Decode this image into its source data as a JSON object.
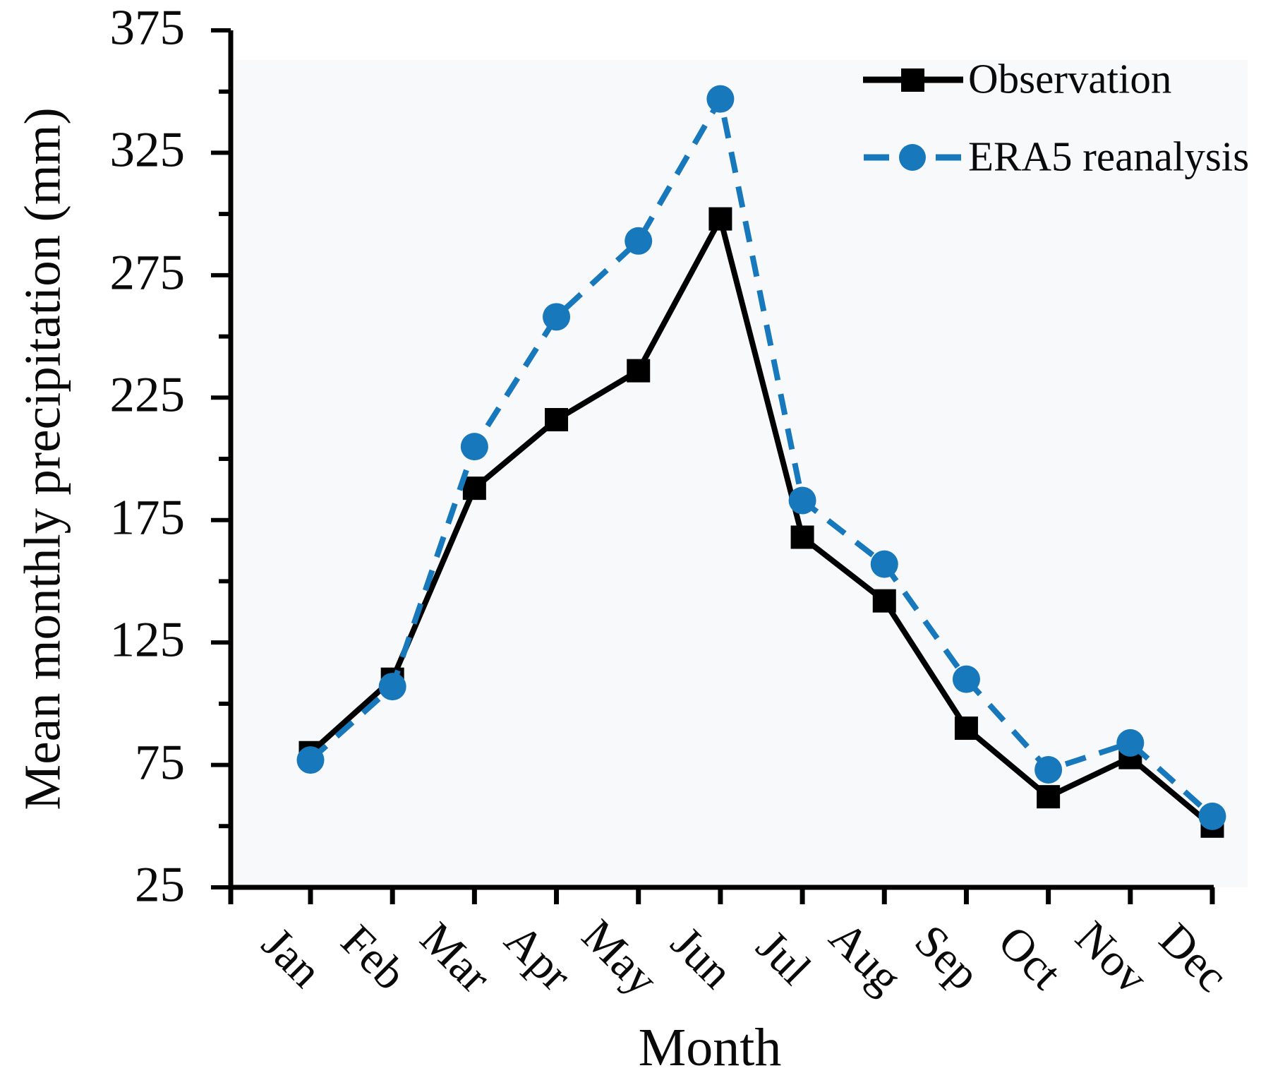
{
  "chart_data": {
    "type": "line",
    "title": "",
    "xlabel": "Month",
    "ylabel": "Mean monthly precipitation (mm)",
    "categories": [
      "Jan",
      "Feb",
      "Mar",
      "Apr",
      "May",
      "Jun",
      "Jul",
      "Aug",
      "Sep",
      "Oct",
      "Nov",
      "Dec"
    ],
    "series": [
      {
        "name": "Observation",
        "color": "#000000",
        "marker": "square",
        "line_style": "solid",
        "values": [
          80,
          110,
          188,
          216,
          236,
          298,
          168,
          142,
          90,
          62,
          78,
          50
        ]
      },
      {
        "name": "ERA5 reanalysis",
        "color": "#1878bc",
        "marker": "circle",
        "line_style": "dashed",
        "values": [
          77,
          107,
          205,
          258,
          289,
          347,
          183,
          157,
          110,
          73,
          84,
          54
        ]
      }
    ],
    "ylim": [
      25,
      375
    ],
    "y_major_ticks": [
      375,
      325,
      275,
      225,
      175,
      125,
      75,
      25
    ],
    "y_minor_step": 25,
    "grid": false,
    "legend_position": "top-right"
  },
  "colors": {
    "axis": "#000000",
    "observation": "#000000",
    "era5": "#1878bc",
    "background": "#ffffff",
    "plot_panel": "#f8f9fb"
  }
}
